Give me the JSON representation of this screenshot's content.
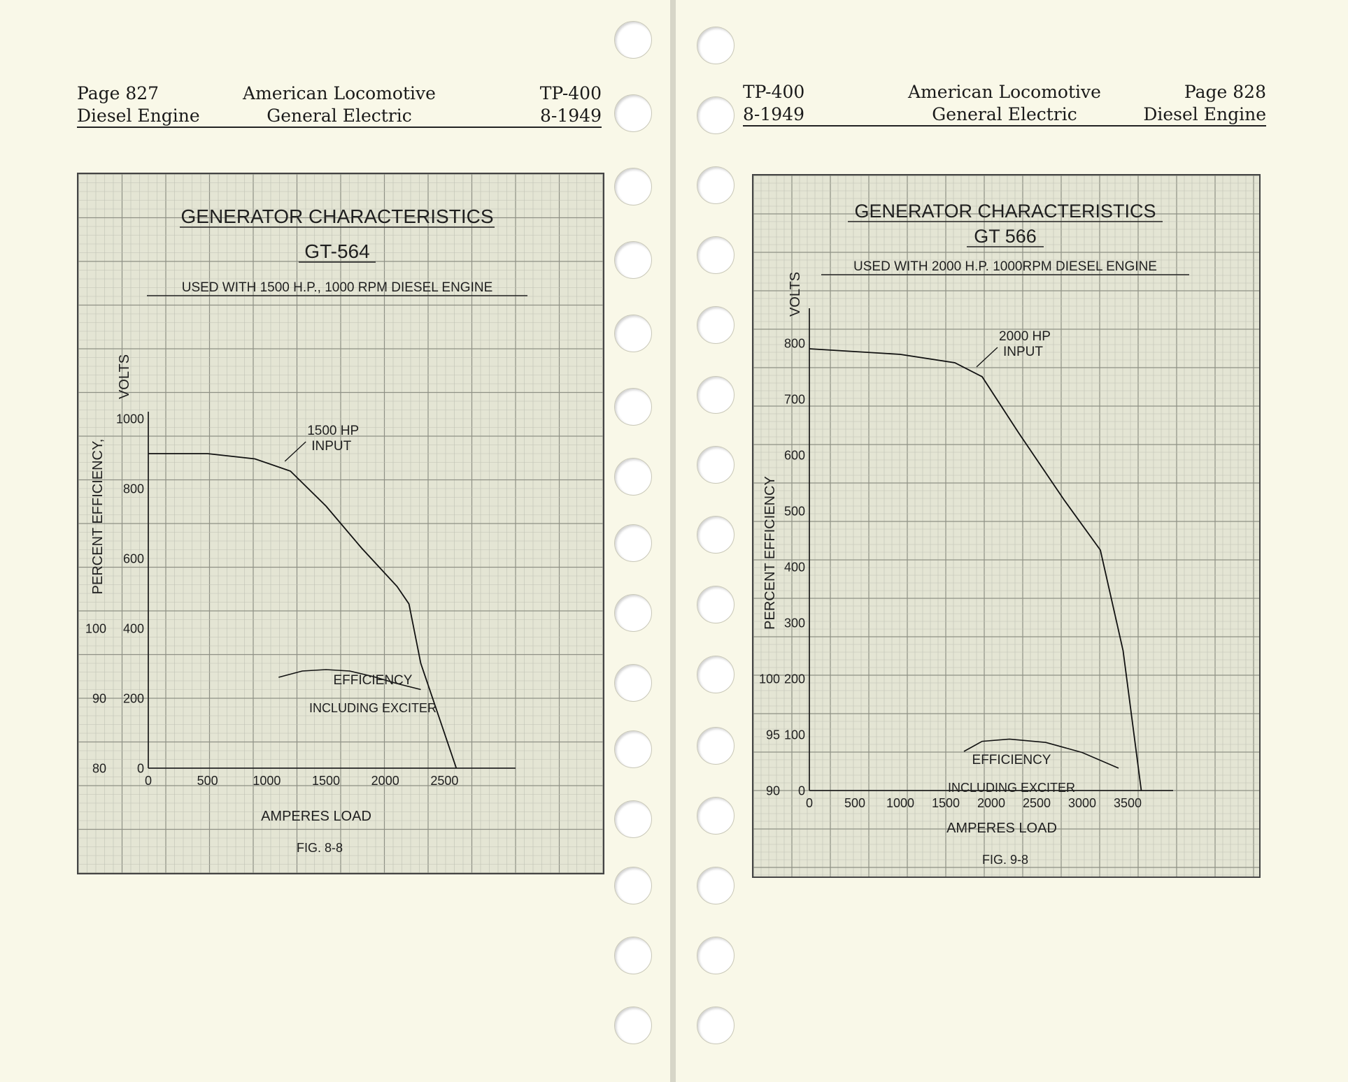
{
  "left_page": {
    "header": {
      "page": "Page 827",
      "subject": "Diesel Engine",
      "company_line1": "American Locomotive",
      "company_line2": "General Electric",
      "doc_code": "TP-400",
      "date": "8-1949"
    },
    "figure": {
      "title": "GENERATOR CHARACTERISTICS",
      "model": "GT-564",
      "usage": "USED WITH 1500 H.P., 1000 RPM DIESEL ENGINE",
      "y_label_volts": "VOLTS",
      "y_label_eff": "PERCENT EFFICIENCY,",
      "x_label": "AMPERES LOAD",
      "fig_label": "FIG. 8-8",
      "input_label_1": "1500 HP",
      "input_label_2": "INPUT",
      "eff_label_1": "EFFICIENCY",
      "eff_label_2": "INCLUDING EXCITER"
    }
  },
  "right_page": {
    "header": {
      "doc_code": "TP-400",
      "date": "8-1949",
      "company_line1": "American Locomotive",
      "company_line2": "General Electric",
      "page": "Page 828",
      "subject": "Diesel Engine"
    },
    "figure": {
      "title": "GENERATOR CHARACTERISTICS",
      "model": "GT 566",
      "usage": "USED WITH 2000 H.P. 1000RPM DIESEL ENGINE",
      "y_label_volts": "VOLTS",
      "y_label_eff": "PERCENT EFFICIENCY",
      "x_label": "AMPERES LOAD",
      "fig_label": "FIG. 9-8",
      "input_label_1": "2000 HP",
      "input_label_2": "INPUT",
      "eff_label_1": "EFFICIENCY",
      "eff_label_2": "INCLUDING EXCITER"
    }
  },
  "chart_data": [
    {
      "type": "line",
      "title": "GENERATOR CHARACTERISTICS",
      "subtitle": "GT-564",
      "xlabel": "AMPERES LOAD",
      "ylabel": "VOLTS",
      "ylabel2": "PERCENT EFFICIENCY,",
      "xlim": [
        0,
        3100
      ],
      "ylim": [
        0,
        1000
      ],
      "x_ticks": [
        0,
        500,
        1000,
        1500,
        2000,
        2500
      ],
      "y_ticks": [
        0,
        200,
        400,
        600,
        800,
        1000
      ],
      "y2_ticks": [
        {
          "label": "80",
          "at": 0
        },
        {
          "label": "90",
          "at": 200
        },
        {
          "label": "100",
          "at": 400
        }
      ],
      "series": [
        {
          "kind": "volts",
          "points": [
            [
              0,
              900
            ],
            [
              500,
              900
            ],
            [
              900,
              885
            ],
            [
              1200,
              850
            ],
            [
              1500,
              750
            ],
            [
              1800,
              630
            ],
            [
              2100,
              520
            ],
            [
              2200,
              470
            ],
            [
              2300,
              300
            ],
            [
              2450,
              150
            ],
            [
              2600,
              0
            ]
          ]
        },
        {
          "kind": "efficiency_volts_scale",
          "points": [
            [
              1100,
              260
            ],
            [
              1300,
              278
            ],
            [
              1500,
              282
            ],
            [
              1700,
              278
            ],
            [
              1900,
              262
            ],
            [
              2100,
              242
            ],
            [
              2300,
              225
            ]
          ]
        }
      ],
      "annotations": [
        {
          "text": "1500 HP INPUT",
          "x": 1200,
          "y": 850
        },
        {
          "text": "EFFICIENCY INCLUDING EXCITER",
          "x": 1600,
          "y": 250
        }
      ],
      "grid": true
    },
    {
      "type": "line",
      "title": "GENERATOR CHARACTERISTICS",
      "subtitle": "GT 566",
      "xlabel": "AMPERES LOAD",
      "ylabel": "VOLTS",
      "ylabel2": "PERCENT EFFICIENCY",
      "xlim": [
        0,
        4000
      ],
      "ylim": [
        0,
        850
      ],
      "x_ticks": [
        0,
        500,
        1000,
        1500,
        2000,
        2500,
        3000,
        3500
      ],
      "y_ticks": [
        0,
        100,
        200,
        300,
        400,
        500,
        600,
        700,
        800
      ],
      "y2_ticks": [
        {
          "label": "90",
          "at": 0
        },
        {
          "label": "95",
          "at": 100
        },
        {
          "label": "100",
          "at": 200
        }
      ],
      "series": [
        {
          "kind": "volts",
          "points": [
            [
              0,
              790
            ],
            [
              1000,
              780
            ],
            [
              1600,
              765
            ],
            [
              1900,
              740
            ],
            [
              2300,
              640
            ],
            [
              2800,
              520
            ],
            [
              3200,
              430
            ],
            [
              3450,
              250
            ],
            [
              3650,
              0
            ]
          ]
        },
        {
          "kind": "efficiency_volts_scale",
          "points": [
            [
              1700,
              70
            ],
            [
              1900,
              88
            ],
            [
              2200,
              92
            ],
            [
              2600,
              86
            ],
            [
              3000,
              68
            ],
            [
              3400,
              40
            ]
          ]
        }
      ],
      "annotations": [
        {
          "text": "2000 HP INPUT",
          "x": 1900,
          "y": 740
        },
        {
          "text": "EFFICIENCY INCLUDING EXCITER",
          "x": 2300,
          "y": 60
        }
      ],
      "grid": true
    }
  ]
}
